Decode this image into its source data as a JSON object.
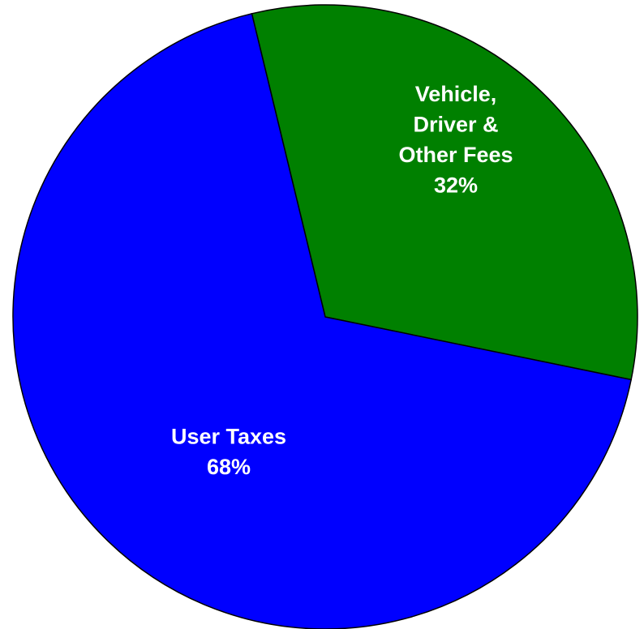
{
  "chart_data": {
    "type": "pie",
    "categories": [
      "Vehicle,\nDriver &\nOther Fees",
      "User Taxes"
    ],
    "values": [
      32,
      68
    ],
    "value_labels": [
      "32%",
      "68%"
    ],
    "colors": [
      "#008000",
      "#0000ff"
    ]
  }
}
